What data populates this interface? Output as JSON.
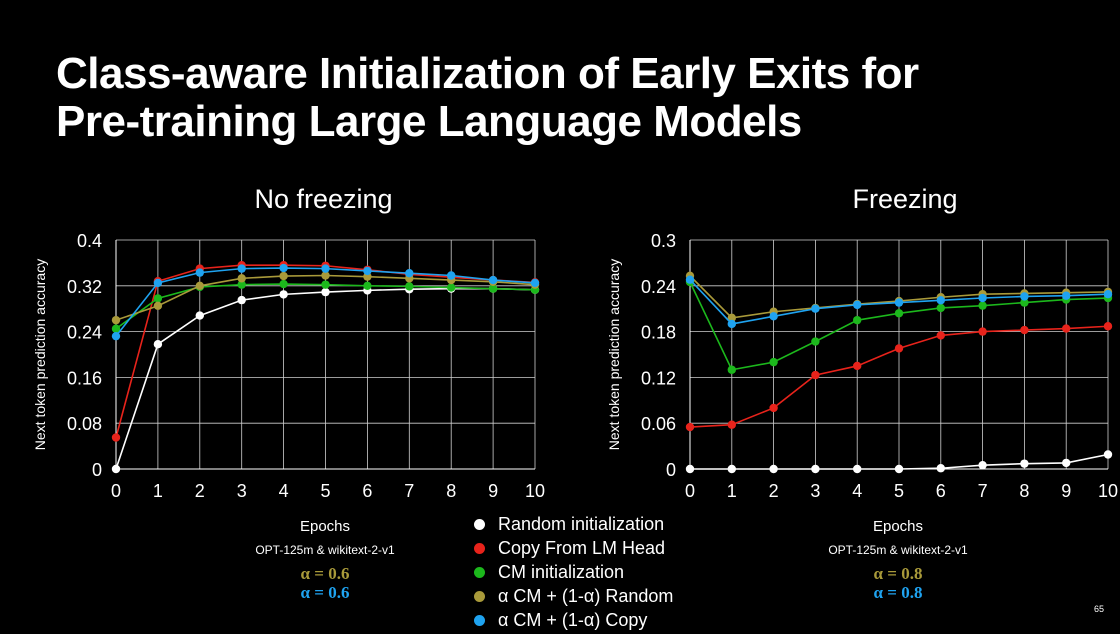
{
  "slide": {
    "title_line1": "Class-aware Initialization of Early Exits for",
    "title_line2": "Pre-training Large Language Models",
    "page_number": "65"
  },
  "colors": {
    "random": "#ffffff",
    "copy": "#e8231b",
    "cm": "#1cb81c",
    "alpha_random": "#a99a3a",
    "alpha_copy": "#1fa3f0"
  },
  "legend": {
    "items": [
      {
        "label": "Random initialization",
        "color": "#ffffff"
      },
      {
        "label": "Copy From LM Head",
        "color": "#e8231b"
      },
      {
        "label": "CM initialization",
        "color": "#1cb81c"
      },
      {
        "label": "α CM + (1-α) Random",
        "color": "#a99a3a"
      },
      {
        "label": "α CM + (1-α) Copy",
        "color": "#1fa3f0"
      }
    ]
  },
  "chart_data": [
    {
      "type": "line",
      "title": "No freezing",
      "xlabel": "Epochs",
      "ylabel": "Next token prediction accuracy",
      "x": [
        0,
        1,
        2,
        3,
        4,
        5,
        6,
        7,
        8,
        9,
        10
      ],
      "xlim": [
        0,
        10
      ],
      "ylim": [
        0,
        0.4
      ],
      "yticks": [
        0,
        0.08,
        0.16,
        0.24,
        0.32,
        0.4
      ],
      "ytick_labels": [
        "0",
        "0.08",
        "0.16",
        "0.24",
        "0.32",
        "0.4"
      ],
      "grid": true,
      "note": "OPT-125m & wikitext-2-v1",
      "alpha_random_label": "α = 0.6",
      "alpha_copy_label": "α = 0.6",
      "series": [
        {
          "name": "Random initialization",
          "key": "random",
          "values": [
            0.0,
            0.218,
            0.268,
            0.295,
            0.305,
            0.309,
            0.312,
            0.314,
            0.315,
            0.315,
            0.313
          ]
        },
        {
          "name": "Copy From LM Head",
          "key": "copy",
          "values": [
            0.055,
            0.328,
            0.35,
            0.356,
            0.356,
            0.355,
            0.348,
            0.34,
            0.335,
            0.33,
            0.326
          ]
        },
        {
          "name": "CM initialization",
          "key": "cm",
          "values": [
            0.245,
            0.298,
            0.318,
            0.322,
            0.323,
            0.322,
            0.32,
            0.319,
            0.317,
            0.315,
            0.313
          ]
        },
        {
          "name": "α CM + (1-α) Random",
          "key": "alpha_random",
          "values": [
            0.26,
            0.285,
            0.32,
            0.333,
            0.337,
            0.338,
            0.336,
            0.333,
            0.33,
            0.327,
            0.322
          ]
        },
        {
          "name": "α CM + (1-α) Copy",
          "key": "alpha_copy",
          "values": [
            0.232,
            0.325,
            0.343,
            0.35,
            0.351,
            0.35,
            0.346,
            0.342,
            0.338,
            0.33,
            0.325
          ]
        }
      ]
    },
    {
      "type": "line",
      "title": "Freezing",
      "xlabel": "Epochs",
      "ylabel": "Next token prediction accuracy",
      "x": [
        0,
        1,
        2,
        3,
        4,
        5,
        6,
        7,
        8,
        9,
        10
      ],
      "xlim": [
        0,
        10
      ],
      "ylim": [
        0,
        0.3
      ],
      "yticks": [
        0,
        0.06,
        0.12,
        0.18,
        0.24,
        0.3
      ],
      "ytick_labels": [
        "0",
        "0.06",
        "0.12",
        "0.18",
        "0.24",
        "0.3"
      ],
      "grid": true,
      "note": "OPT-125m & wikitext-2-v1",
      "alpha_random_label": "α = 0.8",
      "alpha_copy_label": "α = 0.8",
      "series": [
        {
          "name": "Random initialization",
          "key": "random",
          "values": [
            0.0,
            0.0,
            0.0,
            0.0,
            0.0,
            0.0,
            0.001,
            0.005,
            0.007,
            0.008,
            0.019
          ]
        },
        {
          "name": "Copy From LM Head",
          "key": "copy",
          "values": [
            0.055,
            0.058,
            0.08,
            0.123,
            0.135,
            0.158,
            0.175,
            0.18,
            0.182,
            0.184,
            0.187
          ]
        },
        {
          "name": "CM initialization",
          "key": "cm",
          "values": [
            0.245,
            0.13,
            0.14,
            0.167,
            0.195,
            0.204,
            0.211,
            0.214,
            0.218,
            0.222,
            0.224
          ]
        },
        {
          "name": "α CM + (1-α) Random",
          "key": "alpha_random",
          "values": [
            0.253,
            0.198,
            0.206,
            0.211,
            0.216,
            0.22,
            0.225,
            0.229,
            0.23,
            0.231,
            0.232
          ]
        },
        {
          "name": "α CM + (1-α) Copy",
          "key": "alpha_copy",
          "values": [
            0.248,
            0.19,
            0.2,
            0.21,
            0.215,
            0.218,
            0.221,
            0.224,
            0.226,
            0.227,
            0.229
          ]
        }
      ]
    }
  ]
}
